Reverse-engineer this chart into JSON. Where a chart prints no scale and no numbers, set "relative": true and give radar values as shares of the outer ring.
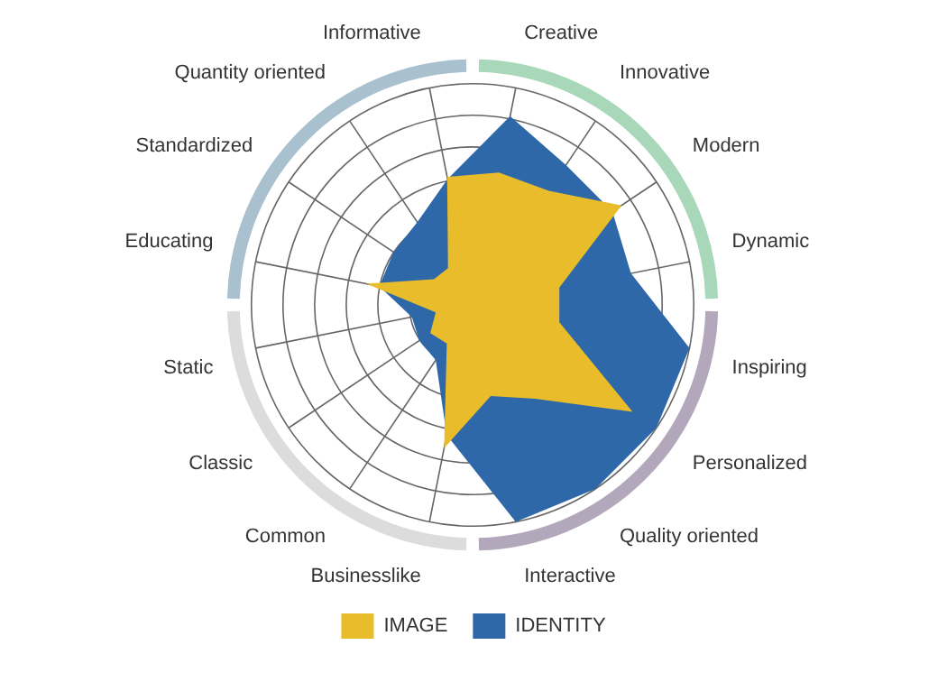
{
  "chart_data": {
    "type": "radar",
    "relative": true,
    "grid": true,
    "legend": "bottom",
    "categories": [
      "Creative",
      "Innovative",
      "Modern",
      "Dynamic",
      "Inspiring",
      "Personalized",
      "Quality oriented",
      "Interactive",
      "Businesslike",
      "Common",
      "Classic",
      "Static",
      "Educating",
      "Standardized",
      "Quantity oriented",
      "Informative"
    ],
    "series": [
      {
        "name": "IMAGE",
        "color": "#e8bc2a",
        "values": [
          0.61,
          0.62,
          0.81,
          0.4,
          0.4,
          0.87,
          0.51,
          0.42,
          0.66,
          0.21,
          0.23,
          0.17,
          0.49,
          0.21,
          0.2,
          0.59
        ]
      },
      {
        "name": "IDENTITY",
        "color": "#2f68a8",
        "values": [
          0.87,
          0.76,
          0.76,
          0.73,
          1,
          1,
          1,
          1,
          0.6,
          0.3,
          0.29,
          0.28,
          0.43,
          0.43,
          0.45,
          0.58
        ]
      }
    ]
  }
}
